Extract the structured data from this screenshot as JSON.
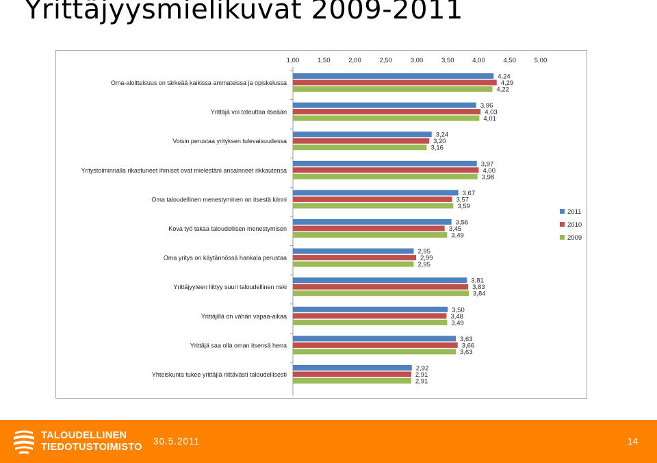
{
  "slide": {
    "title": "Yrittäjyysmielikuvat 2009-2011",
    "footer_date": "30.5.2011",
    "page_number": "14"
  },
  "logo": {
    "line1": "TALOUDELLINEN",
    "line2": "TIEDOTUSTOIMISTO"
  },
  "chart_data": {
    "type": "bar",
    "orientation": "horizontal",
    "xlim": [
      1.0,
      5.0
    ],
    "tick_labels": [
      "1,00",
      "1,50",
      "2,00",
      "2,50",
      "3,00",
      "3,50",
      "4,00",
      "4,50",
      "5,00"
    ],
    "tick_values": [
      1.0,
      1.5,
      2.0,
      2.5,
      3.0,
      3.5,
      4.0,
      4.5,
      5.0
    ],
    "x_axis_position": "top",
    "legend_position": "right",
    "grid": false,
    "categories": [
      "Oma-aloitteisuus on tärkeää kaikissa ammateissa ja opiskelussa",
      "Yrittäjä voi toteuttaa itseään",
      "Voisin perustaa yrityksen tulevaisuudessa",
      "Yritystoiminnalla rikastuneet ihmiset ovat mielestäni ansainneet rikkautensa",
      "Oma taloudellinen menestyminen on itsestä kiinni",
      "Kova työ takaa taloudellisen menestymisen",
      "Oma yritys on käytännössä hankala perustaa",
      "Yrittäjyyteen liittyy suuri taloudellinen riski",
      "Yrittäjillä on vähän vapaa-aikaa",
      "Yrittäjä saa olla oman itsensä herra",
      "Yhteiskunta tukee yrittäjiä riittävästi taloudellisesti"
    ],
    "series": [
      {
        "name": "2011",
        "color": "#4f81bd",
        "values": [
          4.24,
          3.96,
          3.24,
          3.97,
          3.67,
          3.56,
          2.95,
          3.81,
          3.5,
          3.63,
          2.92
        ],
        "labels": [
          "4,24",
          "3,96",
          "3,24",
          "3,97",
          "3,67",
          "3,56",
          "2,95",
          "3,81",
          "3,50",
          "3,63",
          "2,92"
        ]
      },
      {
        "name": "2010",
        "color": "#c0504d",
        "values": [
          4.29,
          4.03,
          3.2,
          4.0,
          3.57,
          3.45,
          2.99,
          3.83,
          3.48,
          3.66,
          2.91
        ],
        "labels": [
          "4,29",
          "4,03",
          "3,20",
          "4,00",
          "3,57",
          "3,45",
          "2,99",
          "3,83",
          "3,48",
          "3,66",
          "2,91"
        ]
      },
      {
        "name": "2009",
        "color": "#9bbb59",
        "values": [
          4.22,
          4.01,
          3.16,
          3.98,
          3.59,
          3.49,
          2.95,
          3.84,
          3.49,
          3.63,
          2.91
        ],
        "labels": [
          "4,22",
          "4,01",
          "3,16",
          "3,98",
          "3,59",
          "3,49",
          "2,95",
          "3,84",
          "3,49",
          "3,63",
          "2,91"
        ]
      }
    ]
  }
}
